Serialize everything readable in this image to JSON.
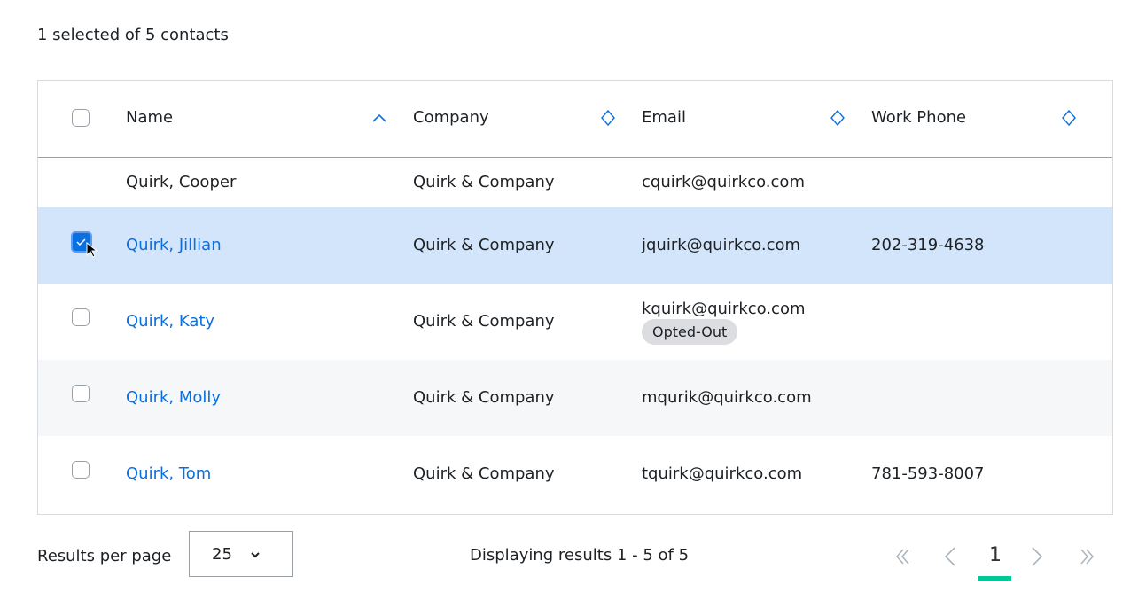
{
  "summary": "1 selected of 5 contacts",
  "columns": [
    {
      "label": "Name",
      "sort": "ascending"
    },
    {
      "label": "Company",
      "sort": "none"
    },
    {
      "label": "Email",
      "sort": "none"
    },
    {
      "label": "Work Phone",
      "sort": "none"
    }
  ],
  "rows": [
    {
      "name": "Quirk, Cooper",
      "company": "Quirk & Company",
      "email": "cquirk@quirkco.com",
      "phone": "",
      "checkbox": false,
      "selected": false,
      "link": false
    },
    {
      "name": "Quirk, Jillian",
      "company": "Quirk & Company",
      "email": "jquirk@quirkco.com",
      "phone": "202-319-4638",
      "checkbox": true,
      "selected": true,
      "link": true
    },
    {
      "name": "Quirk, Katy",
      "company": "Quirk & Company",
      "email": "kquirk@quirkco.com",
      "phone": "",
      "badge": "Opted-Out",
      "checkbox": true,
      "selected": false,
      "link": true
    },
    {
      "name": "Quirk, Molly",
      "company": "Quirk & Company",
      "email": "mqurik@quirkco.com",
      "phone": "",
      "checkbox": true,
      "selected": false,
      "link": true
    },
    {
      "name": "Quirk, Tom",
      "company": "Quirk & Company",
      "email": "tquirk@quirkco.com",
      "phone": "781-593-8007",
      "checkbox": true,
      "selected": false,
      "link": true
    }
  ],
  "footer": {
    "rpp_label": "Results per page",
    "rpp_value": "25",
    "display": "Displaying results 1 - 5 of 5",
    "page": "1"
  },
  "colors": {
    "accent": "#0b6fe0",
    "selected_row": "#d3e5fa",
    "alt_row": "#f6f7f8",
    "page_underline": "#00c896"
  }
}
